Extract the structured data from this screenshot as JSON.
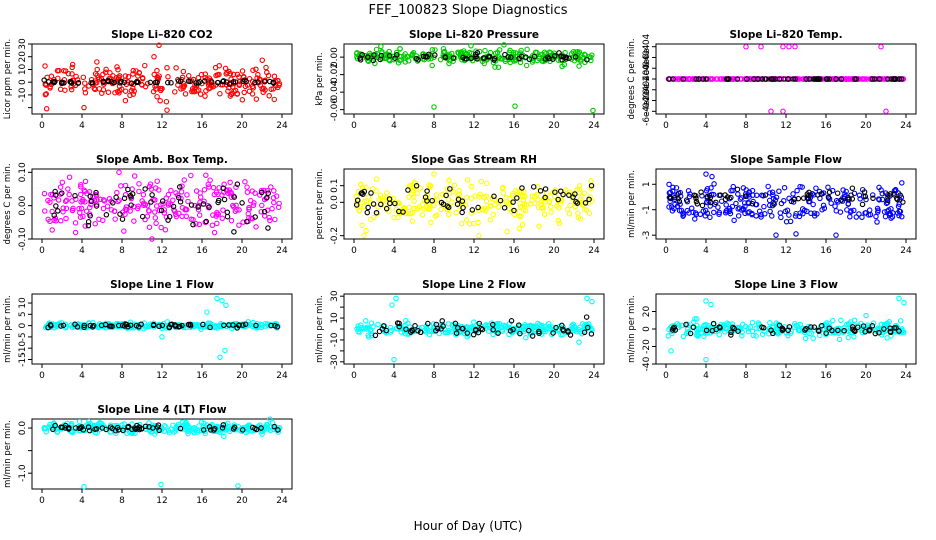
{
  "figure": {
    "title": "FEF_100823  Slope Diagnostics",
    "xlabel": "Hour of Day (UTC)"
  },
  "chart_data": [
    {
      "type": "scatter",
      "title": "Slope Li–820 CO2",
      "ylabel": "Licor ppm per min.",
      "color": "#ff0000",
      "xlim": [
        0,
        24
      ],
      "xticks": [
        "0",
        "4",
        "8",
        "12",
        "16",
        "20",
        "24"
      ],
      "ylim": [
        -25,
        30
      ],
      "yticks": [
        -20,
        -10,
        0,
        10,
        20,
        30
      ],
      "ytick_labels": [
        "",
        "-10",
        "0",
        "10",
        "20",
        "30"
      ],
      "center": 0,
      "spread": 6,
      "black_spread": 0.6,
      "outliers": [
        [
          11.7,
          29
        ],
        [
          11.2,
          20
        ],
        [
          7.5,
          12
        ],
        [
          12.5,
          -22
        ],
        [
          4.2,
          -20
        ]
      ]
    },
    {
      "type": "scatter",
      "title": "Slope Li–820 Pressure",
      "ylabel": "kPa per min.",
      "color": "#00cc00",
      "xlim": [
        0,
        24
      ],
      "xticks": [
        "0",
        "4",
        "8",
        "12",
        "16",
        "20",
        "24"
      ],
      "ylim": [
        -0.065,
        0.015
      ],
      "yticks": [
        -0.06,
        -0.04,
        -0.02,
        0.0
      ],
      "ytick_labels": [
        "-0.06",
        "-0.04",
        "-0.02",
        "0.00"
      ],
      "center": 0.0,
      "spread": 0.004,
      "black_spread": 0.002,
      "outliers": [
        [
          8.0,
          -0.057
        ],
        [
          16.1,
          -0.056
        ],
        [
          23.9,
          -0.061
        ],
        [
          11.7,
          0.013
        ],
        [
          15.0,
          0.014
        ]
      ]
    },
    {
      "type": "scatter",
      "title": "Slope Li–820 Temp.",
      "ylabel": "degrees C per min.",
      "color": "#ff00ff",
      "xlim": [
        0,
        24
      ],
      "xticks": [
        "0",
        "4",
        "8",
        "12",
        "16",
        "20",
        "24"
      ],
      "ylim": [
        -0.00065,
        0.00065
      ],
      "yticks": [
        -0.0006,
        -0.0004,
        -0.0002,
        0.0,
        0.0002,
        0.0004,
        0.0006
      ],
      "ytick_labels": [
        "-6e-04",
        "-4e-04",
        "-2e-04",
        "0e+00",
        "2e-04",
        "4e-04",
        "6e-04"
      ],
      "center": 0.0,
      "spread": 1e-07,
      "black_spread": 1e-07,
      "outliers": [
        [
          8.0,
          0.0006
        ],
        [
          9.5,
          0.0006
        ],
        [
          11.7,
          0.0006
        ],
        [
          12.3,
          0.0006
        ],
        [
          12.9,
          0.0006
        ],
        [
          21.5,
          0.0006
        ],
        [
          10.5,
          -0.0006
        ],
        [
          11.7,
          -0.0006
        ],
        [
          22.0,
          -0.0006
        ]
      ]
    },
    {
      "type": "scatter",
      "title": "Slope Amb. Box Temp.",
      "ylabel": "degrees C per min.",
      "color": "#ff00ff",
      "xlim": [
        0,
        24
      ],
      "xticks": [
        "0",
        "4",
        "8",
        "12",
        "16",
        "20",
        "24"
      ],
      "ylim": [
        -0.1,
        0.11
      ],
      "yticks": [
        -0.1,
        0.0,
        0.1
      ],
      "ytick_labels": [
        "-0.10",
        "0.00",
        "0.10"
      ],
      "center": 0.0,
      "spread": 0.04,
      "black_spread": 0.03,
      "outliers": [
        [
          7.7,
          0.1
        ],
        [
          11.0,
          -0.1
        ]
      ]
    },
    {
      "type": "scatter",
      "title": "Slope Gas Stream RH",
      "ylabel": "percent per min.",
      "color": "#ffff00",
      "xlim": [
        0,
        24
      ],
      "xticks": [
        "0",
        "4",
        "8",
        "12",
        "16",
        "20",
        "24"
      ],
      "ylim": [
        -0.22,
        0.2
      ],
      "yticks": [
        -0.2,
        0.0,
        0.1
      ],
      "ytick_labels": [
        "-0.2",
        "0.0",
        "0.1"
      ],
      "center": 0.0,
      "spread": 0.06,
      "black_spread": 0.05,
      "outliers": [
        [
          12.5,
          -0.2
        ],
        [
          8.0,
          0.17
        ]
      ]
    },
    {
      "type": "scatter",
      "title": "Slope Sample Flow",
      "ylabel": "ml/min per min.",
      "color": "#0000ff",
      "xlim": [
        0,
        24
      ],
      "xticks": [
        "0",
        "4",
        "8",
        "12",
        "16",
        "20",
        "24"
      ],
      "ylim": [
        -3.3,
        2.2
      ],
      "yticks": [
        -3,
        -1,
        1
      ],
      "ytick_labels": [
        "-3",
        "-1",
        "1"
      ],
      "center": 0.0,
      "spread": 0.5,
      "black_spread": 0.3,
      "lower_band": -1.3,
      "outliers": [
        [
          4.0,
          1.8
        ],
        [
          4.6,
          1.6
        ],
        [
          11.0,
          -3.0
        ],
        [
          13.0,
          -2.9
        ],
        [
          17.0,
          -3.0
        ]
      ]
    },
    {
      "type": "scatter",
      "title": "Slope Line 1 Flow",
      "ylabel": "ml/min per min.",
      "color": "#00ffff",
      "xlim": [
        0,
        24
      ],
      "xticks": [
        "0",
        "4",
        "8",
        "12",
        "16",
        "20",
        "24"
      ],
      "ylim": [
        -17,
        14
      ],
      "yticks": [
        -15,
        -10,
        -5,
        0,
        5,
        10
      ],
      "ytick_labels": [
        "-15",
        "-10",
        "-5",
        "0",
        "5",
        "10"
      ],
      "center": 0.0,
      "spread": 0.6,
      "black_spread": 0.4,
      "outliers": [
        [
          17.5,
          12
        ],
        [
          18.0,
          11
        ],
        [
          18.4,
          9
        ],
        [
          17.8,
          -14
        ],
        [
          18.3,
          -11
        ],
        [
          12.0,
          -5
        ],
        [
          16.5,
          6
        ]
      ]
    },
    {
      "type": "scatter",
      "title": "Slope Line 2 Flow",
      "ylabel": "ml/min per min.",
      "color": "#00ffff",
      "xlim": [
        0,
        24
      ],
      "xticks": [
        "0",
        "4",
        "8",
        "12",
        "16",
        "20",
        "24"
      ],
      "ylim": [
        -32,
        32
      ],
      "yticks": [
        -30,
        -20,
        -10,
        0,
        10,
        20,
        30
      ],
      "ytick_labels": [
        "-30",
        "",
        "-10",
        "",
        "10",
        "",
        "30"
      ],
      "center": 0.0,
      "spread": 3,
      "black_spread": 4,
      "outliers": [
        [
          4.2,
          28
        ],
        [
          3.8,
          22
        ],
        [
          4.0,
          -28
        ],
        [
          23.3,
          28
        ],
        [
          23.8,
          25
        ],
        [
          22.5,
          -12
        ]
      ]
    },
    {
      "type": "scatter",
      "title": "Slope Line 3 Flow",
      "ylabel": "ml/min per min.",
      "color": "#00ffff",
      "xlim": [
        0,
        24
      ],
      "xticks": [
        "0",
        "4",
        "8",
        "12",
        "16",
        "20",
        "24"
      ],
      "ylim": [
        -40,
        40
      ],
      "yticks": [
        -40,
        -20,
        0,
        20
      ],
      "ytick_labels": [
        "-40",
        "-20",
        "0",
        "20"
      ],
      "center": 0.0,
      "spread": 4,
      "black_spread": 3,
      "outliers": [
        [
          4.0,
          32
        ],
        [
          4.5,
          28
        ],
        [
          4.0,
          -35
        ],
        [
          23.3,
          35
        ],
        [
          23.8,
          30
        ],
        [
          0.5,
          -25
        ]
      ]
    },
    {
      "type": "scatter",
      "title": "Slope Line 4 (LT) Flow",
      "ylabel": "ml/min per min.",
      "color": "#00ffff",
      "xlim": [
        0,
        24
      ],
      "xticks": [
        "0",
        "4",
        "8",
        "12",
        "16",
        "20",
        "24"
      ],
      "ylim": [
        -1.35,
        0.2
      ],
      "yticks": [
        -1.0,
        -0.5,
        0.0
      ],
      "ytick_labels": [
        "-1.0",
        "",
        "0.0"
      ],
      "center": 0.0,
      "spread": 0.06,
      "black_spread": 0.03,
      "outliers": [
        [
          4.2,
          -1.3
        ],
        [
          11.9,
          -1.25
        ],
        [
          19.6,
          -1.28
        ]
      ]
    }
  ]
}
